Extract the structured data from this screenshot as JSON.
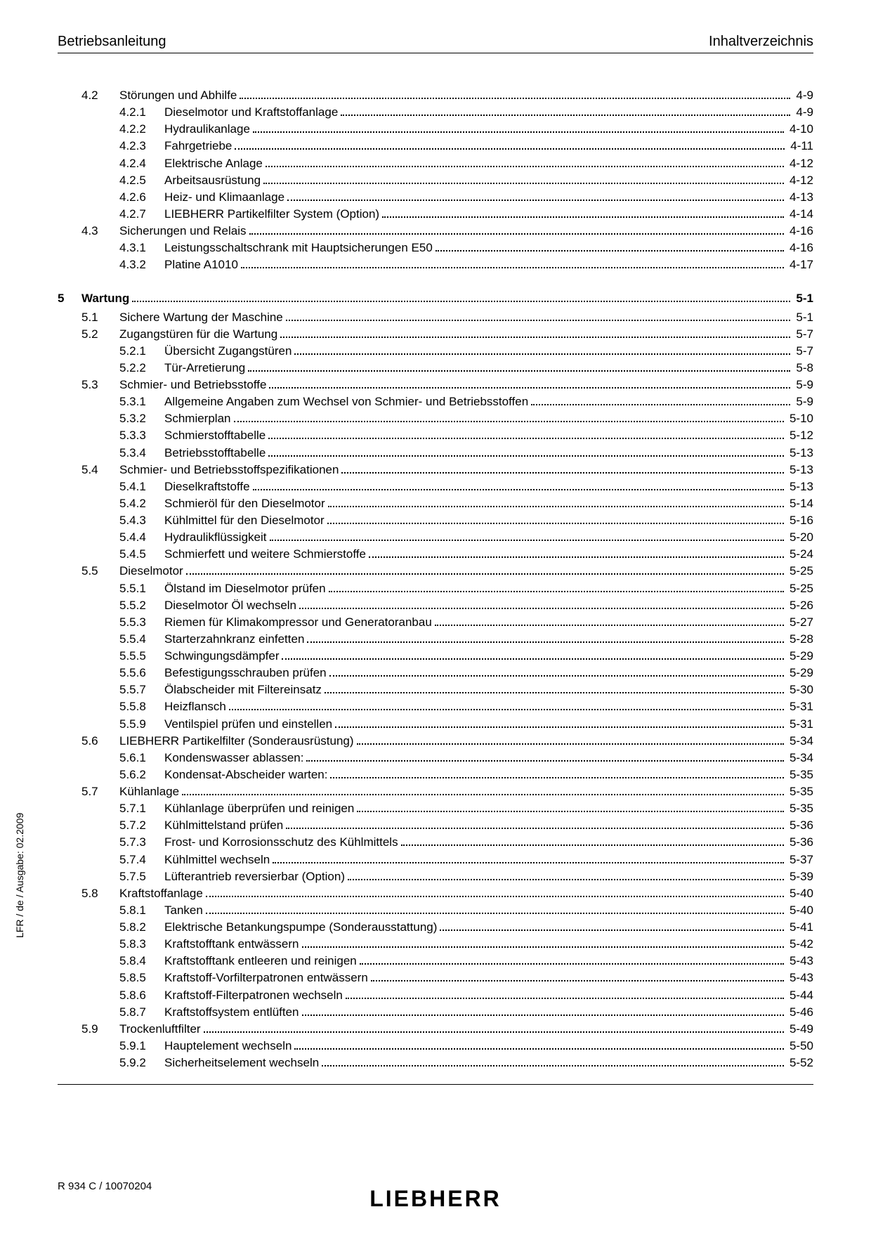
{
  "header": {
    "left": "Betriebsanleitung",
    "right": "Inhaltverzeichnis"
  },
  "sideText": "LFR / de / Ausgabe: 02.2009",
  "footerLeft": "R 934 C / 10070204",
  "logo": "LIEBHERR",
  "toc": [
    {
      "level": 1,
      "num": "4.2",
      "label": "Störungen und Abhilfe",
      "page": "4-9"
    },
    {
      "level": 2,
      "num": "4.2.1",
      "label": "Dieselmotor und Kraftstoffanlage",
      "page": "4-9"
    },
    {
      "level": 2,
      "num": "4.2.2",
      "label": "Hydraulikanlage",
      "page": "4-10"
    },
    {
      "level": 2,
      "num": "4.2.3",
      "label": "Fahrgetriebe",
      "page": "4-11"
    },
    {
      "level": 2,
      "num": "4.2.4",
      "label": "Elektrische Anlage",
      "page": "4-12"
    },
    {
      "level": 2,
      "num": "4.2.5",
      "label": "Arbeitsausrüstung",
      "page": "4-12"
    },
    {
      "level": 2,
      "num": "4.2.6",
      "label": "Heiz- und Klimaanlage",
      "page": "4-13"
    },
    {
      "level": 2,
      "num": "4.2.7",
      "label": "LIEBHERR Partikelfilter System (Option)",
      "page": "4-14"
    },
    {
      "level": 1,
      "num": "4.3",
      "label": "Sicherungen und Relais",
      "page": "4-16"
    },
    {
      "level": 2,
      "num": "4.3.1",
      "label": "Leistungsschaltschrank mit Hauptsicherungen E50",
      "page": "4-16"
    },
    {
      "level": 2,
      "num": "4.3.2",
      "label": "Platine A1010",
      "page": "4-17"
    },
    {
      "level": 0,
      "chapter": "5",
      "label": "Wartung",
      "page": "5-1"
    },
    {
      "level": 1,
      "num": "5.1",
      "label": "Sichere Wartung der Maschine",
      "page": "5-1"
    },
    {
      "level": 1,
      "num": "5.2",
      "label": "Zugangstüren für die Wartung",
      "page": "5-7"
    },
    {
      "level": 2,
      "num": "5.2.1",
      "label": "Übersicht Zugangstüren",
      "page": "5-7"
    },
    {
      "level": 2,
      "num": "5.2.2",
      "label": "Tür-Arretierung",
      "page": "5-8"
    },
    {
      "level": 1,
      "num": "5.3",
      "label": "Schmier- und Betriebsstoffe",
      "page": "5-9"
    },
    {
      "level": 2,
      "num": "5.3.1",
      "label": "Allgemeine Angaben zum Wechsel von Schmier- und Betriebsstoffen",
      "page": "5-9"
    },
    {
      "level": 2,
      "num": "5.3.2",
      "label": "Schmierplan",
      "page": "5-10"
    },
    {
      "level": 2,
      "num": "5.3.3",
      "label": "Schmierstofftabelle",
      "page": "5-12"
    },
    {
      "level": 2,
      "num": "5.3.4",
      "label": "Betriebsstofftabelle",
      "page": "5-13"
    },
    {
      "level": 1,
      "num": "5.4",
      "label": "Schmier- und Betriebsstoffspezifikationen",
      "page": "5-13"
    },
    {
      "level": 2,
      "num": "5.4.1",
      "label": "Dieselkraftstoffe",
      "page": "5-13"
    },
    {
      "level": 2,
      "num": "5.4.2",
      "label": "Schmieröl für den Dieselmotor",
      "page": "5-14"
    },
    {
      "level": 2,
      "num": "5.4.3",
      "label": "Kühlmittel für den Dieselmotor",
      "page": "5-16"
    },
    {
      "level": 2,
      "num": "5.4.4",
      "label": "Hydraulikflüssigkeit",
      "page": "5-20"
    },
    {
      "level": 2,
      "num": "5.4.5",
      "label": "Schmierfett und weitere Schmierstoffe",
      "page": "5-24"
    },
    {
      "level": 1,
      "num": "5.5",
      "label": "Dieselmotor",
      "page": "5-25"
    },
    {
      "level": 2,
      "num": "5.5.1",
      "label": "Ölstand im Dieselmotor prüfen",
      "page": "5-25"
    },
    {
      "level": 2,
      "num": "5.5.2",
      "label": "Dieselmotor Öl wechseln",
      "page": "5-26"
    },
    {
      "level": 2,
      "num": "5.5.3",
      "label": "Riemen für Klimakompressor und Generatoranbau",
      "page": "5-27"
    },
    {
      "level": 2,
      "num": "5.5.4",
      "label": "Starterzahnkranz einfetten",
      "page": "5-28"
    },
    {
      "level": 2,
      "num": "5.5.5",
      "label": "Schwingungsdämpfer",
      "page": "5-29"
    },
    {
      "level": 2,
      "num": "5.5.6",
      "label": "Befestigungsschrauben prüfen",
      "page": "5-29"
    },
    {
      "level": 2,
      "num": "5.5.7",
      "label": "Ölabscheider mit Filtereinsatz",
      "page": "5-30"
    },
    {
      "level": 2,
      "num": "5.5.8",
      "label": "Heizflansch",
      "page": "5-31"
    },
    {
      "level": 2,
      "num": "5.5.9",
      "label": "Ventilspiel prüfen und einstellen",
      "page": "5-31"
    },
    {
      "level": 1,
      "num": "5.6",
      "label": "LIEBHERR Partikelfilter (Sonderausrüstung)",
      "page": "5-34"
    },
    {
      "level": 2,
      "num": "5.6.1",
      "label": "Kondenswasser ablassen:",
      "page": "5-34"
    },
    {
      "level": 2,
      "num": "5.6.2",
      "label": "Kondensat-Abscheider warten:",
      "page": "5-35"
    },
    {
      "level": 1,
      "num": "5.7",
      "label": "Kühlanlage",
      "page": "5-35"
    },
    {
      "level": 2,
      "num": "5.7.1",
      "label": "Kühlanlage überprüfen und reinigen",
      "page": "5-35"
    },
    {
      "level": 2,
      "num": "5.7.2",
      "label": "Kühlmittelstand prüfen",
      "page": "5-36"
    },
    {
      "level": 2,
      "num": "5.7.3",
      "label": "Frost- und Korrosionsschutz des Kühlmittels",
      "page": "5-36"
    },
    {
      "level": 2,
      "num": "5.7.4",
      "label": "Kühlmittel wechseln",
      "page": "5-37"
    },
    {
      "level": 2,
      "num": "5.7.5",
      "label": "Lüfterantrieb reversierbar (Option)",
      "page": "5-39"
    },
    {
      "level": 1,
      "num": "5.8",
      "label": "Kraftstoffanlage",
      "page": "5-40"
    },
    {
      "level": 2,
      "num": "5.8.1",
      "label": "Tanken",
      "page": "5-40"
    },
    {
      "level": 2,
      "num": "5.8.2",
      "label": "Elektrische Betankungspumpe (Sonderausstattung)",
      "page": "5-41"
    },
    {
      "level": 2,
      "num": "5.8.3",
      "label": "Kraftstofftank entwässern",
      "page": "5-42"
    },
    {
      "level": 2,
      "num": "5.8.4",
      "label": "Kraftstofftank entleeren und reinigen",
      "page": "5-43"
    },
    {
      "level": 2,
      "num": "5.8.5",
      "label": "Kraftstoff-Vorfilterpatronen entwässern",
      "page": "5-43"
    },
    {
      "level": 2,
      "num": "5.8.6",
      "label": "Kraftstoff-Filterpatronen wechseln",
      "page": "5-44"
    },
    {
      "level": 2,
      "num": "5.8.7",
      "label": "Kraftstoffsystem entlüften",
      "page": "5-46"
    },
    {
      "level": 1,
      "num": "5.9",
      "label": "Trockenluftfilter",
      "page": "5-49"
    },
    {
      "level": 2,
      "num": "5.9.1",
      "label": "Hauptelement wechseln",
      "page": "5-50"
    },
    {
      "level": 2,
      "num": "5.9.2",
      "label": "Sicherheitselement wechseln",
      "page": "5-52"
    }
  ]
}
